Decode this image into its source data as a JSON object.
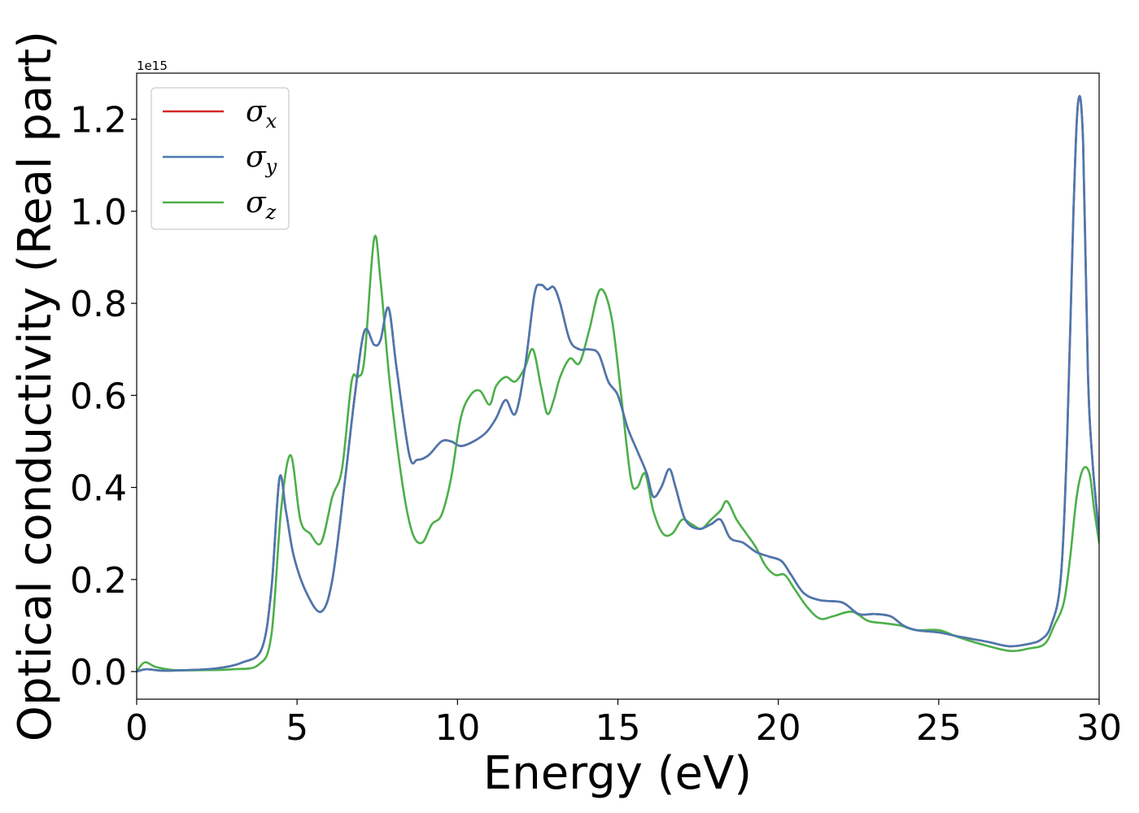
{
  "chart_data": {
    "type": "line",
    "xlabel": "Energy (eV)",
    "ylabel": "Optical conductivity (Real part)",
    "y_offset_label": "1e15",
    "xlim": [
      0,
      30
    ],
    "ylim": [
      -0.06,
      1.3
    ],
    "xticks": [
      0,
      5,
      10,
      15,
      20,
      25,
      30
    ],
    "xtick_labels": [
      "0",
      "5",
      "10",
      "15",
      "20",
      "25",
      "30"
    ],
    "yticks": [
      0.0,
      0.2,
      0.4,
      0.6,
      0.8,
      1.0,
      1.2
    ],
    "ytick_labels": [
      "0.0",
      "0.2",
      "0.4",
      "0.6",
      "0.8",
      "1.0",
      "1.2"
    ],
    "grid": false,
    "legend_position": "top-left",
    "series": [
      {
        "name": "σx",
        "symbol": "σ",
        "subscript": "x",
        "color": "#d62728",
        "x": [
          0,
          0.3,
          0.8,
          1.5,
          2.5,
          3.3,
          3.9,
          4.2,
          4.45,
          4.65,
          4.9,
          5.3,
          5.75,
          6.1,
          6.5,
          6.8,
          7.1,
          7.4,
          7.6,
          7.85,
          8.1,
          8.5,
          8.75,
          9.1,
          9.5,
          9.8,
          10.1,
          10.5,
          10.9,
          11.2,
          11.5,
          11.8,
          12.1,
          12.4,
          12.6,
          12.8,
          13.0,
          13.2,
          13.5,
          13.8,
          14.1,
          14.4,
          14.7,
          15.0,
          15.3,
          15.6,
          15.9,
          16.1,
          16.35,
          16.6,
          16.8,
          17.1,
          17.5,
          17.9,
          18.2,
          18.5,
          18.9,
          19.3,
          19.7,
          20.1,
          20.4,
          20.8,
          21.3,
          22.0,
          22.5,
          23.0,
          23.5,
          23.9,
          24.3,
          25.0,
          25.7,
          26.5,
          27.2,
          27.8,
          28.2,
          28.5,
          28.8,
          29.0,
          29.2,
          29.35,
          29.5,
          29.65,
          29.8,
          30.0
        ],
        "values": [
          0.0,
          0.005,
          0.002,
          0.003,
          0.007,
          0.02,
          0.05,
          0.18,
          0.42,
          0.35,
          0.25,
          0.17,
          0.13,
          0.2,
          0.42,
          0.6,
          0.74,
          0.71,
          0.72,
          0.79,
          0.66,
          0.47,
          0.46,
          0.47,
          0.5,
          0.5,
          0.49,
          0.5,
          0.52,
          0.55,
          0.59,
          0.56,
          0.66,
          0.82,
          0.84,
          0.83,
          0.835,
          0.8,
          0.72,
          0.7,
          0.7,
          0.69,
          0.63,
          0.6,
          0.53,
          0.48,
          0.43,
          0.38,
          0.4,
          0.44,
          0.4,
          0.33,
          0.31,
          0.32,
          0.33,
          0.29,
          0.28,
          0.26,
          0.25,
          0.24,
          0.21,
          0.17,
          0.155,
          0.15,
          0.125,
          0.125,
          0.12,
          0.1,
          0.09,
          0.085,
          0.075,
          0.065,
          0.055,
          0.06,
          0.07,
          0.1,
          0.2,
          0.5,
          1.0,
          1.24,
          1.15,
          0.65,
          0.45,
          0.3
        ]
      },
      {
        "name": "σy",
        "symbol": "σ",
        "subscript": "y",
        "color": "#4a78b0",
        "x": [
          0,
          0.3,
          0.8,
          1.5,
          2.5,
          3.3,
          3.9,
          4.2,
          4.45,
          4.65,
          4.9,
          5.3,
          5.75,
          6.1,
          6.5,
          6.8,
          7.1,
          7.4,
          7.6,
          7.85,
          8.1,
          8.5,
          8.75,
          9.1,
          9.5,
          9.8,
          10.1,
          10.5,
          10.9,
          11.2,
          11.5,
          11.8,
          12.1,
          12.4,
          12.6,
          12.8,
          13.0,
          13.2,
          13.5,
          13.8,
          14.1,
          14.4,
          14.7,
          15.0,
          15.3,
          15.6,
          15.9,
          16.1,
          16.35,
          16.6,
          16.8,
          17.1,
          17.5,
          17.9,
          18.2,
          18.5,
          18.9,
          19.3,
          19.7,
          20.1,
          20.4,
          20.8,
          21.3,
          22.0,
          22.5,
          23.0,
          23.5,
          23.9,
          24.3,
          25.0,
          25.7,
          26.5,
          27.2,
          27.8,
          28.2,
          28.5,
          28.8,
          29.0,
          29.2,
          29.35,
          29.5,
          29.65,
          29.8,
          30.0
        ],
        "values": [
          0.0,
          0.005,
          0.002,
          0.003,
          0.007,
          0.02,
          0.05,
          0.18,
          0.42,
          0.35,
          0.25,
          0.17,
          0.13,
          0.2,
          0.42,
          0.6,
          0.74,
          0.71,
          0.72,
          0.79,
          0.66,
          0.47,
          0.46,
          0.47,
          0.5,
          0.5,
          0.49,
          0.5,
          0.52,
          0.55,
          0.59,
          0.56,
          0.66,
          0.82,
          0.84,
          0.83,
          0.835,
          0.8,
          0.72,
          0.7,
          0.7,
          0.69,
          0.63,
          0.6,
          0.53,
          0.48,
          0.43,
          0.38,
          0.4,
          0.44,
          0.4,
          0.33,
          0.31,
          0.32,
          0.33,
          0.29,
          0.28,
          0.26,
          0.25,
          0.24,
          0.21,
          0.17,
          0.155,
          0.15,
          0.125,
          0.125,
          0.12,
          0.1,
          0.09,
          0.085,
          0.075,
          0.065,
          0.055,
          0.06,
          0.07,
          0.1,
          0.2,
          0.5,
          1.0,
          1.24,
          1.15,
          0.65,
          0.45,
          0.3
        ]
      },
      {
        "name": "σz",
        "symbol": "σ",
        "subscript": "z",
        "color": "#4daf4a",
        "x": [
          0,
          0.25,
          0.6,
          1.2,
          2.0,
          3.0,
          3.8,
          4.2,
          4.5,
          4.8,
          5.1,
          5.4,
          5.75,
          6.1,
          6.4,
          6.7,
          6.9,
          7.1,
          7.4,
          7.6,
          7.9,
          8.3,
          8.6,
          8.9,
          9.2,
          9.5,
          9.8,
          10.1,
          10.4,
          10.7,
          11.0,
          11.2,
          11.5,
          11.8,
          12.1,
          12.35,
          12.6,
          12.8,
          13.0,
          13.2,
          13.5,
          13.8,
          14.1,
          14.45,
          14.8,
          15.1,
          15.4,
          15.6,
          15.85,
          16.1,
          16.4,
          16.7,
          17.0,
          17.3,
          17.6,
          17.9,
          18.2,
          18.4,
          18.7,
          19.0,
          19.3,
          19.6,
          19.9,
          20.2,
          20.5,
          20.9,
          21.3,
          21.7,
          22.3,
          22.8,
          23.3,
          23.8,
          24.3,
          25.0,
          25.6,
          26.3,
          27.2,
          27.8,
          28.3,
          28.6,
          28.9,
          29.1,
          29.3,
          29.5,
          29.7,
          29.85,
          30.0
        ],
        "values": [
          0.0,
          0.02,
          0.01,
          0.003,
          0.003,
          0.005,
          0.015,
          0.08,
          0.35,
          0.47,
          0.33,
          0.3,
          0.28,
          0.38,
          0.44,
          0.63,
          0.64,
          0.68,
          0.94,
          0.85,
          0.62,
          0.4,
          0.3,
          0.28,
          0.32,
          0.34,
          0.42,
          0.55,
          0.6,
          0.61,
          0.58,
          0.62,
          0.64,
          0.63,
          0.66,
          0.7,
          0.62,
          0.56,
          0.59,
          0.64,
          0.68,
          0.67,
          0.74,
          0.83,
          0.77,
          0.6,
          0.42,
          0.4,
          0.43,
          0.35,
          0.3,
          0.3,
          0.33,
          0.32,
          0.31,
          0.33,
          0.35,
          0.37,
          0.33,
          0.3,
          0.27,
          0.23,
          0.21,
          0.21,
          0.18,
          0.14,
          0.115,
          0.12,
          0.13,
          0.11,
          0.105,
          0.1,
          0.09,
          0.09,
          0.075,
          0.06,
          0.045,
          0.05,
          0.06,
          0.1,
          0.15,
          0.25,
          0.38,
          0.44,
          0.43,
          0.35,
          0.28
        ]
      }
    ]
  }
}
